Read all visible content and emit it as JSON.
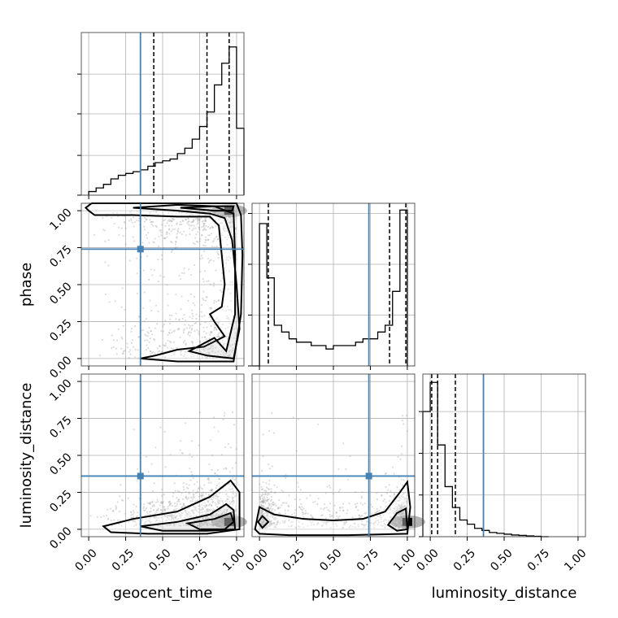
{
  "chart_data": {
    "type": "corner",
    "parameters": [
      "geocent_time",
      "phase",
      "luminosity_distance"
    ],
    "axis_labels": {
      "x": [
        "geocent_time",
        "phase",
        "luminosity_distance"
      ],
      "y": [
        "phase",
        "luminosity_distance"
      ]
    },
    "axis_range": [
      -0.05,
      1.05
    ],
    "tick_values": [
      0.0,
      0.25,
      0.5,
      0.75,
      1.0
    ],
    "tick_labels": [
      "0.00",
      "0.25",
      "0.50",
      "0.75",
      "1.00"
    ],
    "grid": true,
    "colors": {
      "truth": "#4682b4",
      "hist": "#000000",
      "points": "#9a9a9a"
    },
    "truths": {
      "geocent_time": 0.35,
      "phase": 0.74,
      "luminosity_distance": 0.36
    },
    "quantiles": {
      "geocent_time": [
        0.44,
        0.8,
        0.95
      ],
      "phase": [
        0.06,
        0.88,
        0.99
      ],
      "luminosity_distance": [
        0.01,
        0.05,
        0.17
      ]
    },
    "histograms": {
      "geocent_time": {
        "bin_edges": [
          0.0,
          0.05,
          0.1,
          0.15,
          0.2,
          0.25,
          0.3,
          0.35,
          0.4,
          0.45,
          0.5,
          0.55,
          0.6,
          0.65,
          0.7,
          0.75,
          0.8,
          0.85,
          0.9,
          0.95,
          1.0,
          1.05
        ],
        "counts": [
          0.02,
          0.04,
          0.06,
          0.09,
          0.11,
          0.12,
          0.13,
          0.14,
          0.16,
          0.18,
          0.19,
          0.2,
          0.23,
          0.26,
          0.31,
          0.38,
          0.46,
          0.61,
          0.73,
          0.82,
          0.37
        ],
        "ylim": [
          0,
          0.9
        ],
        "yticks": [
          0.0,
          0.22,
          0.45,
          0.67
        ]
      },
      "phase": {
        "bin_edges": [
          -0.05,
          0.0,
          0.05,
          0.1,
          0.15,
          0.2,
          0.25,
          0.3,
          0.35,
          0.4,
          0.45,
          0.5,
          0.55,
          0.6,
          0.65,
          0.7,
          0.75,
          0.8,
          0.85,
          0.9,
          0.95,
          1.0
        ],
        "counts": [
          0.0,
          0.21,
          0.13,
          0.06,
          0.05,
          0.04,
          0.035,
          0.035,
          0.03,
          0.03,
          0.025,
          0.03,
          0.03,
          0.03,
          0.035,
          0.04,
          0.04,
          0.05,
          0.06,
          0.11,
          0.23
        ],
        "ylim": [
          0,
          0.24
        ],
        "yticks": [
          0.0,
          0.075,
          0.15,
          0.225
        ]
      },
      "luminosity_distance": {
        "bin_edges": [
          -0.05,
          0.0,
          0.05,
          0.1,
          0.15,
          0.2,
          0.25,
          0.3,
          0.35,
          0.4,
          0.45,
          0.5,
          0.55,
          0.6,
          0.65,
          0.7,
          0.75,
          0.8
        ],
        "counts": [
          0.3,
          0.37,
          0.22,
          0.12,
          0.07,
          0.04,
          0.03,
          0.02,
          0.015,
          0.01,
          0.008,
          0.006,
          0.004,
          0.003,
          0.002,
          0.001,
          0.0
        ],
        "ylim": [
          0,
          0.39
        ],
        "yticks": [
          0.0,
          0.1,
          0.2,
          0.3
        ]
      }
    },
    "panels_2d": [
      {
        "x": "geocent_time",
        "y": "phase",
        "peak": [
          0.95,
          1.0
        ]
      },
      {
        "x": "geocent_time",
        "y": "luminosity_distance",
        "peak": [
          0.95,
          0.05
        ]
      },
      {
        "x": "phase",
        "y": "luminosity_distance",
        "peak": [
          1.0,
          0.05
        ]
      }
    ],
    "contours": [
      {
        "panel": "geocent_time|phase",
        "levels": [
          [
            [
              0.0,
              1.0
            ],
            [
              0.04,
              0.97
            ],
            [
              0.3,
              0.97
            ],
            [
              0.6,
              0.96
            ],
            [
              0.82,
              0.96
            ],
            [
              0.88,
              0.9
            ],
            [
              0.9,
              0.7
            ],
            [
              0.92,
              0.5
            ],
            [
              0.9,
              0.35
            ],
            [
              0.82,
              0.3
            ],
            [
              0.85,
              0.25
            ],
            [
              0.92,
              0.15
            ],
            [
              0.78,
              0.08
            ],
            [
              0.6,
              0.06
            ],
            [
              0.45,
              0.02
            ],
            [
              0.35,
              0.0
            ],
            [
              0.6,
              -0.02
            ],
            [
              0.98,
              -0.02
            ],
            [
              1.03,
              0.3
            ],
            [
              1.04,
              0.7
            ],
            [
              1.03,
              0.97
            ],
            [
              1.0,
              1.05
            ],
            [
              0.6,
              1.05
            ],
            [
              0.3,
              1.05
            ],
            [
              0.02,
              1.05
            ],
            [
              -0.02,
              1.02
            ]
          ],
          [
            [
              0.3,
              1.02
            ],
            [
              0.6,
              1.0
            ],
            [
              0.82,
              0.98
            ],
            [
              0.92,
              0.95
            ],
            [
              0.97,
              0.8
            ],
            [
              1.0,
              0.5
            ],
            [
              1.02,
              0.2
            ],
            [
              0.98,
              0.0
            ],
            [
              0.8,
              0.02
            ],
            [
              0.68,
              0.05
            ],
            [
              0.85,
              0.14
            ],
            [
              0.93,
              0.05
            ],
            [
              0.99,
              0.3
            ],
            [
              0.99,
              0.7
            ],
            [
              0.98,
              0.98
            ],
            [
              0.85,
              1.03
            ],
            [
              0.6,
              1.04
            ]
          ],
          [
            [
              0.62,
              1.02
            ],
            [
              0.85,
              1.0
            ],
            [
              0.97,
              1.0
            ],
            [
              0.98,
              1.03
            ],
            [
              0.85,
              1.03
            ]
          ]
        ]
      },
      {
        "panel": "geocent_time|luminosity_distance",
        "levels": [
          [
            [
              0.1,
              0.02
            ],
            [
              0.3,
              0.07
            ],
            [
              0.6,
              0.12
            ],
            [
              0.82,
              0.22
            ],
            [
              0.96,
              0.33
            ],
            [
              1.02,
              0.25
            ],
            [
              1.02,
              0.0
            ],
            [
              0.8,
              -0.03
            ],
            [
              0.4,
              -0.03
            ],
            [
              0.15,
              -0.02
            ]
          ],
          [
            [
              0.35,
              0.02
            ],
            [
              0.6,
              0.05
            ],
            [
              0.82,
              0.1
            ],
            [
              0.93,
              0.17
            ],
            [
              0.98,
              0.13
            ],
            [
              0.99,
              0.0
            ],
            [
              0.8,
              -0.01
            ],
            [
              0.5,
              -0.01
            ]
          ],
          [
            [
              0.67,
              0.04
            ],
            [
              0.85,
              0.07
            ],
            [
              0.96,
              0.11
            ],
            [
              0.98,
              0.05
            ],
            [
              0.92,
              0.0
            ],
            [
              0.75,
              0.0
            ]
          ]
        ]
      },
      {
        "panel": "phase|luminosity_distance",
        "levels": [
          [
            [
              -0.03,
              0.0
            ],
            [
              0.0,
              0.15
            ],
            [
              0.1,
              0.1
            ],
            [
              0.3,
              0.07
            ],
            [
              0.5,
              0.06
            ],
            [
              0.7,
              0.07
            ],
            [
              0.85,
              0.12
            ],
            [
              0.95,
              0.25
            ],
            [
              1.0,
              0.32
            ],
            [
              1.02,
              0.15
            ],
            [
              1.0,
              -0.03
            ],
            [
              0.6,
              -0.04
            ],
            [
              0.2,
              -0.04
            ],
            [
              0.0,
              -0.03
            ]
          ],
          [
            [
              -0.01,
              0.05
            ],
            [
              0.02,
              0.09
            ],
            [
              0.06,
              0.05
            ],
            [
              0.02,
              0.01
            ]
          ],
          [
            [
              0.87,
              0.03
            ],
            [
              0.93,
              0.11
            ],
            [
              0.99,
              0.14
            ],
            [
              1.0,
              0.0
            ],
            [
              0.93,
              -0.01
            ]
          ]
        ]
      }
    ]
  }
}
